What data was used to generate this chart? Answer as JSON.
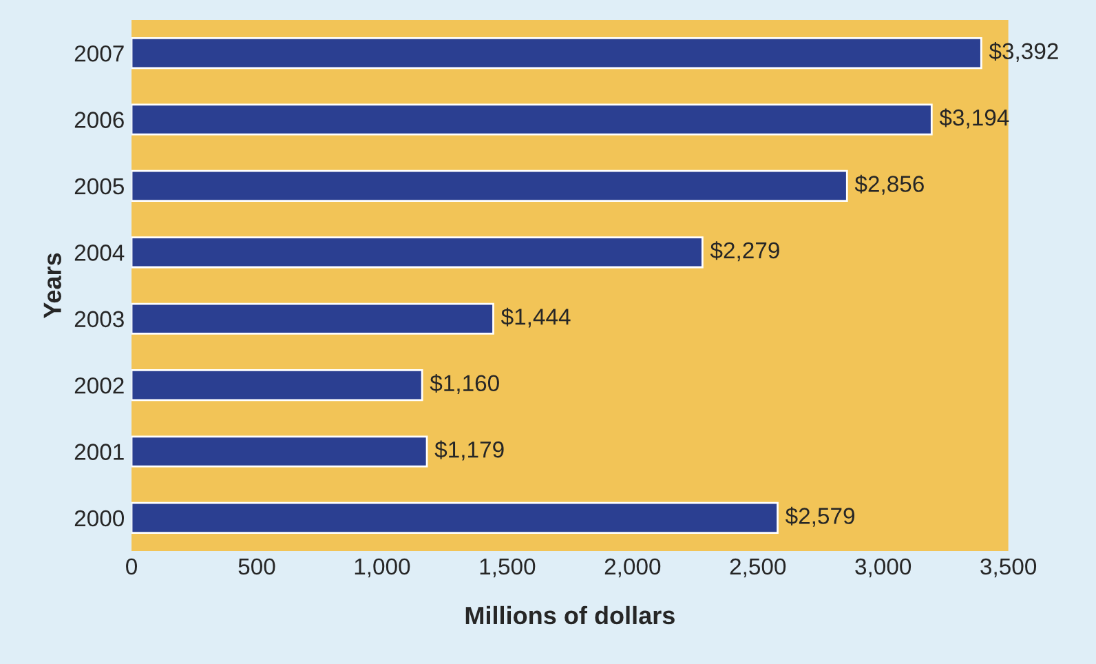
{
  "chart_data": {
    "type": "bar",
    "orientation": "horizontal",
    "xlabel": "Millions of dollars",
    "ylabel": "Years",
    "categories": [
      "2007",
      "2006",
      "2005",
      "2004",
      "2003",
      "2002",
      "2001",
      "2000"
    ],
    "values": [
      3392,
      3194,
      2856,
      2279,
      1444,
      1160,
      1179,
      2579
    ],
    "value_labels": [
      "$3,392",
      "$3,194",
      "$2,856",
      "$2,279",
      "$1,444",
      "$1,160",
      "$1,179",
      "$2,579"
    ],
    "color": "#2b3f91",
    "xlim": [
      0,
      3500
    ],
    "xticks": [
      0,
      500,
      {
        "value": 1000,
        "label": "1,000"
      },
      {
        "value": 1500,
        "label": "1,500"
      },
      {
        "value": 2000,
        "label": "2,000"
      },
      {
        "value": 2500,
        "label": "2,500"
      },
      {
        "value": 3000,
        "label": "3,000"
      },
      {
        "value": 3500,
        "label": "3,500"
      }
    ],
    "grid": false,
    "legend": false
  }
}
